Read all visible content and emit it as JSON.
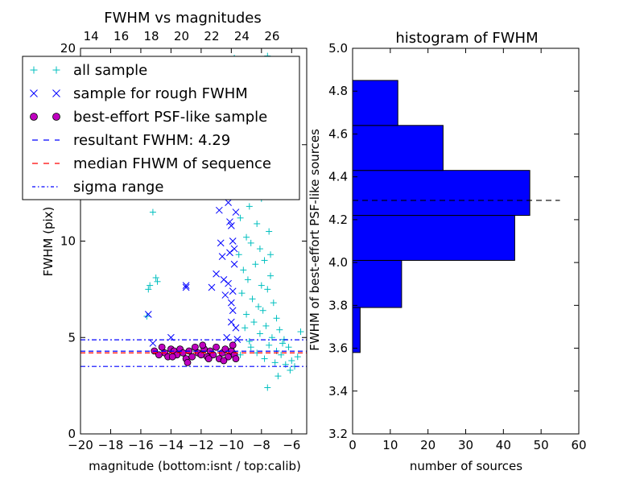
{
  "chart_data": [
    {
      "type": "scatter",
      "title": "FWHM vs magnitudes",
      "xlabel": "magnitude (bottom:isnt / top:calib)",
      "ylabel": "FWHM (pix)",
      "xlim": [
        -20,
        -5
      ],
      "ylim": [
        0,
        20
      ],
      "x_ticks": [
        -20,
        -18,
        -16,
        -14,
        -12,
        -10,
        -8,
        -6
      ],
      "x_tick_labels": [
        "−20",
        "−18",
        "−16",
        "−14",
        "−12",
        "−10",
        "−8",
        "−6"
      ],
      "y_ticks": [
        0,
        5,
        10,
        15,
        20
      ],
      "y_tick_labels": [
        "0",
        "5",
        "10",
        "15",
        "20"
      ],
      "top_x_ticks": [
        14,
        16,
        18,
        20,
        22,
        24,
        26
      ],
      "top_x_offset": 33.3,
      "grid": false,
      "legend_position": "upper-left",
      "lines": {
        "resultant_fwhm": 4.29,
        "median_fwhm": 4.2,
        "sigma_range": [
          3.5,
          4.88
        ]
      },
      "series": [
        {
          "name": "all sample",
          "marker": "+",
          "color": "#00bfbf",
          "points": [
            [
              -15.6,
              6.1
            ],
            [
              -15.5,
              7.5
            ],
            [
              -15.4,
              7.7
            ],
            [
              -15.0,
              8.1
            ],
            [
              -14.9,
              7.9
            ],
            [
              -15.2,
              11.5
            ],
            [
              -14.4,
              15.2
            ],
            [
              -9.8,
              19.5
            ],
            [
              -7.6,
              19.6
            ],
            [
              -7.3,
              19.4
            ],
            [
              -8.9,
              18.0
            ],
            [
              -7.9,
              17.2
            ],
            [
              -8.6,
              16.5
            ],
            [
              -9.3,
              15.8
            ],
            [
              -8.2,
              15.0
            ],
            [
              -7.7,
              14.1
            ],
            [
              -9.1,
              13.6
            ],
            [
              -8.5,
              13.0
            ],
            [
              -9.6,
              12.5
            ],
            [
              -8.0,
              12.2
            ],
            [
              -8.8,
              11.8
            ],
            [
              -9.4,
              11.2
            ],
            [
              -8.3,
              10.9
            ],
            [
              -7.5,
              10.5
            ],
            [
              -9.0,
              10.2
            ],
            [
              -8.7,
              9.9
            ],
            [
              -8.1,
              9.6
            ],
            [
              -9.5,
              9.3
            ],
            [
              -7.8,
              9.0
            ],
            [
              -8.4,
              8.8
            ],
            [
              -9.2,
              8.5
            ],
            [
              -7.4,
              8.2
            ],
            [
              -8.9,
              8.0
            ],
            [
              -8.0,
              7.7
            ],
            [
              -7.6,
              7.5
            ],
            [
              -9.3,
              7.3
            ],
            [
              -8.6,
              7.0
            ],
            [
              -7.2,
              6.8
            ],
            [
              -8.2,
              6.6
            ],
            [
              -7.9,
              6.4
            ],
            [
              -9.0,
              6.2
            ],
            [
              -7.0,
              6.0
            ],
            [
              -8.5,
              5.8
            ],
            [
              -7.7,
              5.6
            ],
            [
              -6.8,
              5.4
            ],
            [
              -8.1,
              5.2
            ],
            [
              -7.3,
              5.0
            ],
            [
              -6.5,
              4.9
            ],
            [
              -8.8,
              4.8
            ],
            [
              -7.5,
              4.6
            ],
            [
              -6.2,
              4.5
            ],
            [
              -7.0,
              4.3
            ],
            [
              -8.3,
              4.2
            ],
            [
              -6.7,
              4.1
            ],
            [
              -7.8,
              3.9
            ],
            [
              -6.0,
              3.8
            ],
            [
              -7.1,
              3.7
            ],
            [
              -6.4,
              3.6
            ],
            [
              -5.8,
              3.5
            ],
            [
              -7.6,
              2.4
            ],
            [
              -5.4,
              5.3
            ],
            [
              -6.9,
              3.0
            ],
            [
              -6.1,
              3.3
            ],
            [
              -8.0,
              14.8
            ],
            [
              -9.7,
              17.0
            ],
            [
              -8.4,
              12.6
            ],
            [
              -7.4,
              9.3
            ],
            [
              -9.1,
              5.5
            ],
            [
              -8.7,
              4.5
            ],
            [
              -9.4,
              4.1
            ],
            [
              -6.6,
              4.7
            ],
            [
              -5.6,
              4.0
            ]
          ]
        },
        {
          "name": "sample for rough FWHM",
          "marker": "x",
          "color": "#0000ff",
          "points": [
            [
              -15.5,
              6.2
            ],
            [
              -13.0,
              7.7
            ],
            [
              -13.0,
              7.6
            ],
            [
              -14.0,
              5.0
            ],
            [
              -15.2,
              4.7
            ],
            [
              -10.9,
              13.0
            ],
            [
              -10.8,
              11.6
            ],
            [
              -10.7,
              9.9
            ],
            [
              -11.0,
              8.3
            ],
            [
              -11.3,
              7.6
            ],
            [
              -10.5,
              8.0
            ],
            [
              -10.2,
              12.0
            ],
            [
              -10.0,
              10.8
            ],
            [
              -9.9,
              10.0
            ],
            [
              -10.1,
              9.4
            ],
            [
              -9.8,
              8.8
            ],
            [
              -9.9,
              6.4
            ],
            [
              -10.0,
              6.8
            ],
            [
              -9.7,
              5.5
            ],
            [
              -10.3,
              5.0
            ],
            [
              -9.6,
              4.9
            ],
            [
              -10.4,
              7.2
            ],
            [
              -10.6,
              9.2
            ],
            [
              -9.7,
              11.5
            ],
            [
              -10.1,
              11.0
            ],
            [
              -9.8,
              9.6
            ],
            [
              -10.2,
              7.8
            ],
            [
              -9.9,
              7.4
            ],
            [
              -10.0,
              5.8
            ]
          ]
        },
        {
          "name": "best-effort PSF-like sample",
          "marker": "o",
          "color": "#bf00bf",
          "points": [
            [
              -15.1,
              4.3
            ],
            [
              -14.8,
              4.1
            ],
            [
              -14.6,
              4.5
            ],
            [
              -14.4,
              4.2
            ],
            [
              -14.2,
              4.0
            ],
            [
              -14.0,
              4.4
            ],
            [
              -13.8,
              4.3
            ],
            [
              -13.6,
              4.1
            ],
            [
              -13.4,
              4.4
            ],
            [
              -13.2,
              4.2
            ],
            [
              -13.0,
              3.9
            ],
            [
              -12.8,
              4.3
            ],
            [
              -12.6,
              4.0
            ],
            [
              -12.4,
              4.5
            ],
            [
              -12.2,
              4.2
            ],
            [
              -12.0,
              4.1
            ],
            [
              -11.8,
              4.4
            ],
            [
              -11.6,
              4.0
            ],
            [
              -11.4,
              4.3
            ],
            [
              -11.2,
              4.1
            ],
            [
              -11.0,
              4.5
            ],
            [
              -10.8,
              3.9
            ],
            [
              -10.6,
              4.2
            ],
            [
              -10.4,
              4.4
            ],
            [
              -10.2,
              4.0
            ],
            [
              -10.0,
              4.3
            ],
            [
              -9.8,
              4.1
            ],
            [
              -9.7,
              3.9
            ],
            [
              -12.9,
              3.7
            ],
            [
              -11.9,
              4.6
            ],
            [
              -10.5,
              3.8
            ],
            [
              -13.9,
              4.0
            ],
            [
              -9.9,
              4.6
            ],
            [
              -11.5,
              3.9
            ]
          ]
        }
      ],
      "legend_entries": [
        {
          "label": "all sample",
          "marker": "+",
          "color": "#00bfbf"
        },
        {
          "label": "sample for rough FWHM",
          "marker": "x",
          "color": "#0000ff"
        },
        {
          "label": "best-effort PSF-like sample",
          "marker": "o",
          "color": "#bf00bf"
        },
        {
          "label": "resultant FWHM: 4.29",
          "marker": "dashed",
          "color": "#0000ff"
        },
        {
          "label": "median FHWM of sequence",
          "marker": "dashed",
          "color": "#ff0000"
        },
        {
          "label": "sigma range",
          "marker": "dashdot",
          "color": "#0000ff"
        }
      ]
    },
    {
      "type": "bar",
      "orientation": "horizontal",
      "title": "histogram of FWHM",
      "xlabel": "number of sources",
      "ylabel": "FWHM of best-effort PSF-like sources",
      "xlim": [
        0,
        60
      ],
      "ylim": [
        3.2,
        5.0
      ],
      "x_ticks": [
        0,
        10,
        20,
        30,
        40,
        50,
        60
      ],
      "x_tick_labels": [
        "0",
        "10",
        "20",
        "30",
        "40",
        "50",
        "60"
      ],
      "y_ticks": [
        3.2,
        3.4,
        3.6,
        3.8,
        4.0,
        4.2,
        4.4,
        4.6,
        4.8,
        5.0
      ],
      "y_tick_labels": [
        "3.2",
        "3.4",
        "3.6",
        "3.8",
        "4.0",
        "4.2",
        "4.4",
        "4.6",
        "4.8",
        "5.0"
      ],
      "bar_color": "#0000ff",
      "bins": [
        {
          "from": 3.58,
          "to": 3.79,
          "count": 2
        },
        {
          "from": 3.79,
          "to": 4.01,
          "count": 13
        },
        {
          "from": 4.01,
          "to": 4.22,
          "count": 43
        },
        {
          "from": 4.22,
          "to": 4.43,
          "count": 47
        },
        {
          "from": 4.43,
          "to": 4.64,
          "count": 24
        },
        {
          "from": 4.64,
          "to": 4.85,
          "count": 12
        }
      ],
      "reference_line": {
        "value": 4.29,
        "x_from": 0,
        "x_to": 55
      }
    }
  ]
}
